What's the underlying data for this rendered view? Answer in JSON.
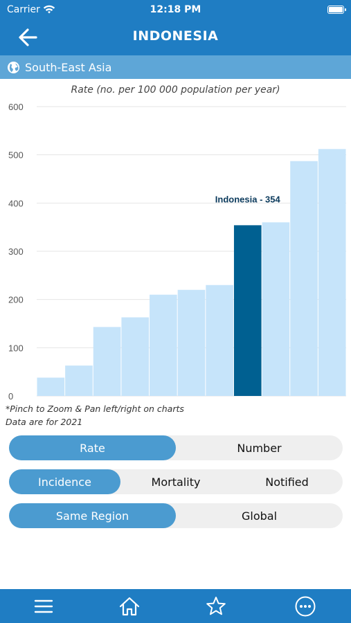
{
  "status": {
    "carrier": "Carrier",
    "time": "12:18 PM"
  },
  "header": {
    "title": "INDONESIA"
  },
  "region": {
    "label": "South-East Asia"
  },
  "chart_data": {
    "type": "bar",
    "title": "Rate (no. per 100 000 population per year)",
    "ylim": [
      0,
      600
    ],
    "yticks": [
      "0",
      "100",
      "200",
      "300",
      "400",
      "500",
      "600"
    ],
    "values": [
      38,
      63,
      143,
      163,
      210,
      220,
      230,
      354,
      360,
      487,
      512
    ],
    "highlight_index": 7,
    "highlight_label": "Indonesia - 354",
    "colors": {
      "bar": "#c6e4fa",
      "highlight": "#006091",
      "grid": "#e4e4e4"
    }
  },
  "notes": {
    "line1": "*Pinch to Zoom & Pan left/right on charts",
    "line2": "Data are for 2021"
  },
  "toggles": {
    "measure": {
      "rate": "Rate",
      "number": "Number"
    },
    "indicator": {
      "incidence": "Incidence",
      "mortality": "Mortality",
      "notified": "Notified"
    },
    "scope": {
      "same_region": "Same Region",
      "global": "Global"
    }
  },
  "tabbar": {
    "icons": [
      "menu-icon",
      "home-icon",
      "star-icon",
      "more-icon"
    ]
  }
}
